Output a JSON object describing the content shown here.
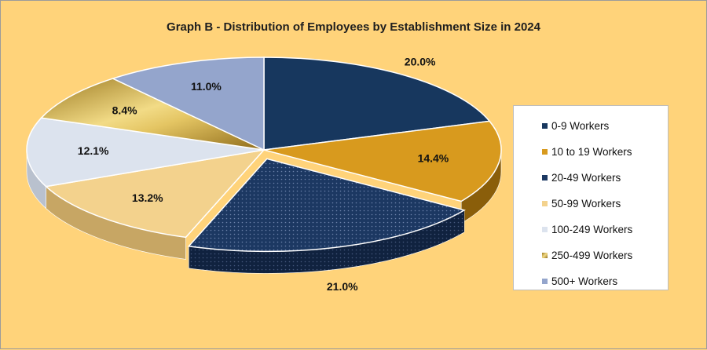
{
  "chart_data": {
    "type": "pie",
    "title": "Graph B - Distribution of Employees by Establishment Size in 2024",
    "categories": [
      "0-9 Workers",
      "10 to 19 Workers",
      "20-49 Workers",
      "50-99 Workers",
      "100-249 Workers",
      "250-499 Workers",
      "500+ Workers"
    ],
    "values": [
      20.0,
      14.4,
      21.0,
      13.2,
      12.1,
      8.4,
      11.0
    ],
    "value_labels": [
      "20.0%",
      "14.4%",
      "21.0%",
      "13.2%",
      "12.1%",
      "8.4%",
      "11.0%"
    ],
    "unit": "%",
    "exploded": [
      "20-49 Workers"
    ],
    "legend_position": "right",
    "colors": [
      "#17375E",
      "#D89A1E",
      "#1C3862",
      "#F3D28D",
      "#DCE3EE",
      "#C9A43C",
      "#94A5CC"
    ]
  }
}
